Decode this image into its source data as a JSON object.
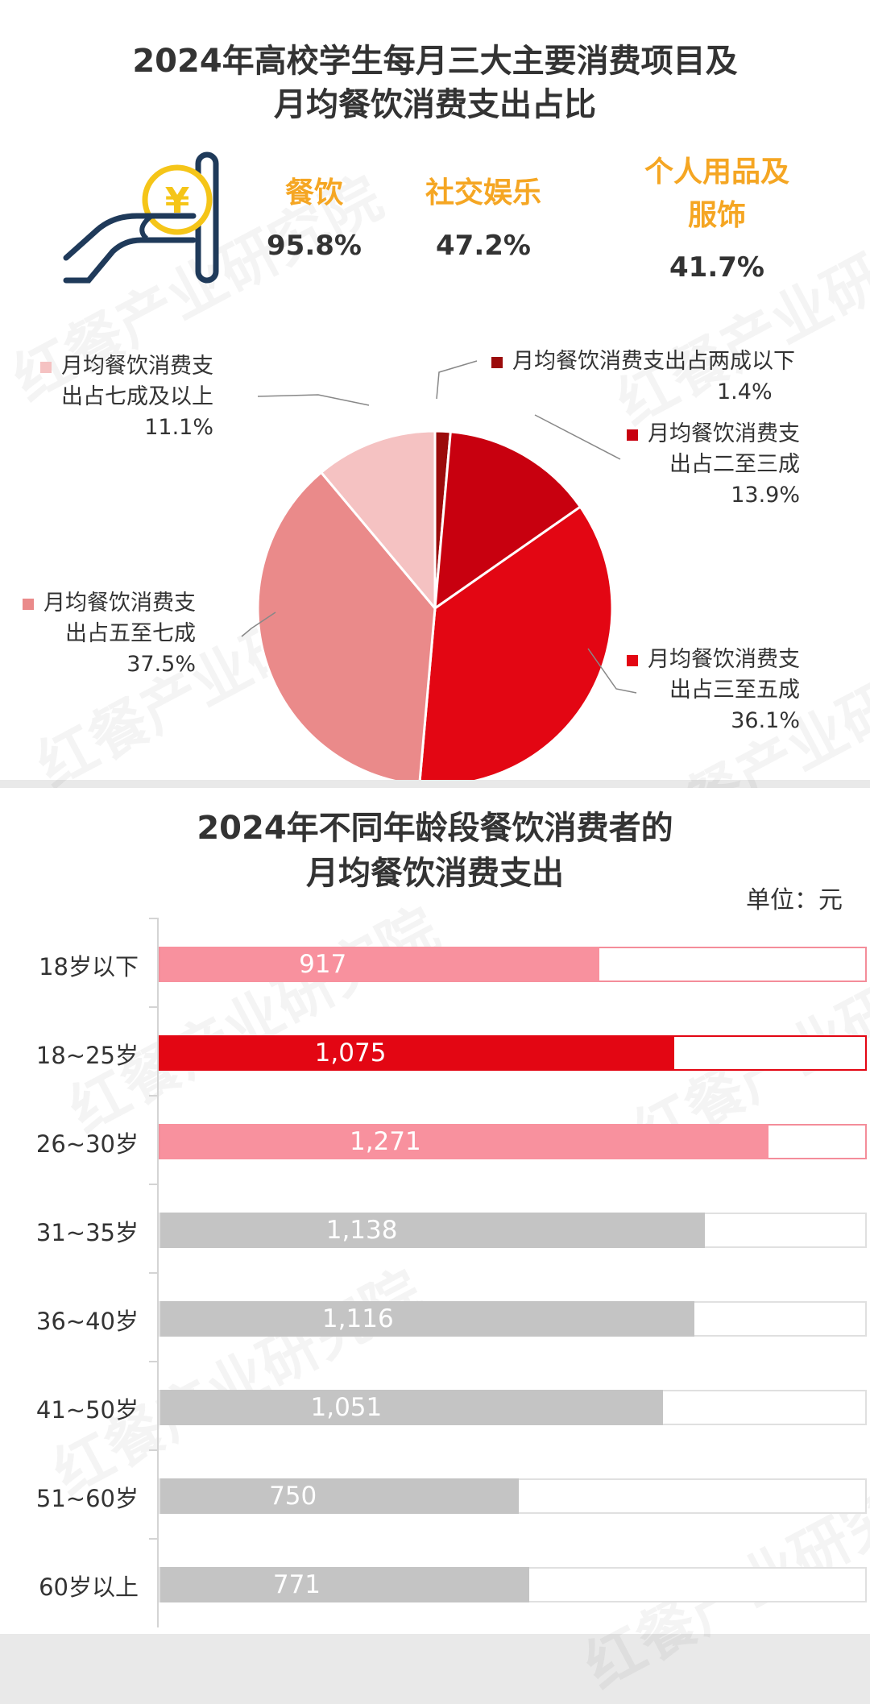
{
  "watermark": "红餐产业研究院",
  "top": {
    "title_line1": "2024年高校学生每月三大主要消费项目及",
    "title_line2": "月均餐饮消费支出占比",
    "icon": "hand-holding-yen-icon",
    "categories": [
      {
        "name_line1": "餐饮",
        "name_line2": "",
        "value": "95.8%"
      },
      {
        "name_line1": "社交娱乐",
        "name_line2": "",
        "value": "47.2%"
      },
      {
        "name_line1": "个人用品及",
        "name_line2": "服饰",
        "value": "41.7%"
      }
    ],
    "accent_color": "#f5a623"
  },
  "pie_labels": [
    {
      "line1": "月均餐饮消费支出占两成以下",
      "line2": "",
      "value": "1.4%"
    },
    {
      "line1": "月均餐饮消费支",
      "line2": "出占二至三成",
      "value": "13.9%"
    },
    {
      "line1": "月均餐饮消费支",
      "line2": "出占三至五成",
      "value": "36.1%"
    },
    {
      "line1": "月均餐饮消费支",
      "line2": "出占五至七成",
      "value": "37.5%"
    },
    {
      "line1": "月均餐饮消费支",
      "line2": "出占七成及以上",
      "value": "11.1%"
    }
  ],
  "bar_section": {
    "title_line1": "2024年不同年龄段餐饮消费者的",
    "title_line2": "月均餐饮消费支出",
    "unit": "单位：元"
  },
  "chart_data": [
    {
      "type": "pie",
      "categories": [
        "月均餐饮消费支出占两成以下",
        "月均餐饮消费支出占二至三成",
        "月均餐饮消费支出占三至五成",
        "月均餐饮消费支出占五至七成",
        "月均餐饮消费支出占七成及以上"
      ],
      "values": [
        1.4,
        13.9,
        36.1,
        37.5,
        11.1
      ],
      "colors": [
        "#9b0b0b",
        "#c8000f",
        "#e30613",
        "#ea8a8a",
        "#f5c2c2"
      ],
      "title": "2024年高校学生每月三大主要消费项目及月均餐饮消费支出占比"
    },
    {
      "type": "bar",
      "orientation": "horizontal",
      "categories": [
        "18岁以下",
        "18~25岁",
        "26~30岁",
        "31~35岁",
        "36~40岁",
        "41~50岁",
        "51~60岁",
        "60岁以上"
      ],
      "values": [
        917,
        1075,
        1271,
        1138,
        1116,
        1051,
        750,
        771
      ],
      "labels": [
        "917",
        "1,075",
        "1,271",
        "1,138",
        "1,116",
        "1,051",
        "750",
        "771"
      ],
      "colors": [
        "#f8919e",
        "#e30613",
        "#f8919e",
        "#c4c4c4",
        "#c4c4c4",
        "#c4c4c4",
        "#c4c4c4",
        "#c4c4c4"
      ],
      "track_colors": [
        "#f48d9a",
        "#e30613",
        "#f48d9a",
        "#e0e0e0",
        "#e0e0e0",
        "#e0e0e0",
        "#e0e0e0",
        "#e0e0e0"
      ],
      "xlim": [
        0,
        1480
      ],
      "title": "2024年不同年龄段餐饮消费者的月均餐饮消费支出",
      "unit": "单位：元"
    }
  ]
}
